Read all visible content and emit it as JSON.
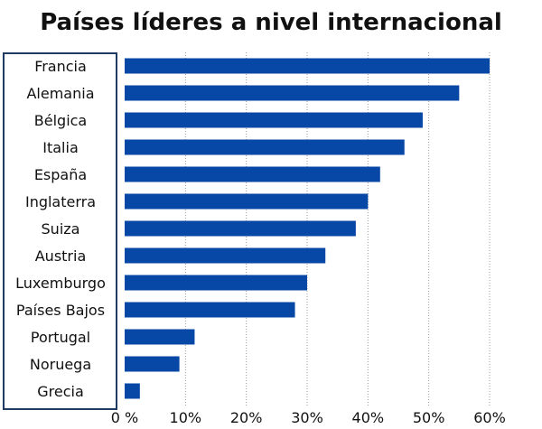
{
  "chart_data": {
    "type": "bar",
    "orientation": "horizontal",
    "title": "Países líderes a nivel internacional",
    "categories": [
      "Francia",
      "Alemania",
      "Bélgica",
      "Italia",
      "España",
      "Inglaterra",
      "Suiza",
      "Austria",
      "Luxemburgo",
      "Países Bajos",
      "Portugal",
      "Noruega",
      "Grecia"
    ],
    "values": [
      60,
      55,
      49,
      46,
      42,
      40,
      38,
      33,
      30,
      28,
      11.5,
      9,
      2.5
    ],
    "xlim": [
      0,
      60
    ],
    "x_ticks": [
      0,
      10,
      20,
      30,
      40,
      50,
      60
    ],
    "x_tick_labels": [
      "0 %",
      "10%",
      "20%",
      "30%",
      "40%",
      "50%",
      "60%"
    ],
    "grid": "vertical-dotted",
    "bar_color": "#0747a6",
    "frame_color": "#1f3b63"
  }
}
